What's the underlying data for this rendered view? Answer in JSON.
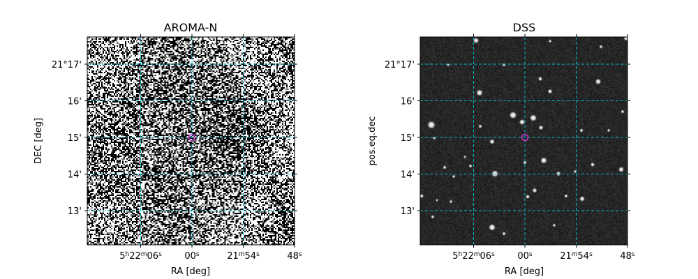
{
  "figure": {
    "panels": [
      {
        "title": "AROMA-N",
        "xlabel": "RA [deg]",
        "ylabel": "DEC [deg]",
        "image_style": "noisy-grayscale"
      },
      {
        "title": "DSS",
        "xlabel": "RA [deg]",
        "ylabel": "pos.eq.dec",
        "image_style": "dark-starfield"
      }
    ],
    "x_ticks": [
      {
        "ra_sec": 6,
        "parts": [
          {
            "t": "5"
          },
          {
            "t": "h",
            "sup": true
          },
          {
            "t": "22"
          },
          {
            "t": "m",
            "sup": true
          },
          {
            "t": "06"
          },
          {
            "t": "s",
            "sup": true
          }
        ]
      },
      {
        "ra_sec": 0,
        "parts": [
          {
            "t": "00"
          },
          {
            "t": "s",
            "sup": true
          }
        ]
      },
      {
        "ra_sec": -6,
        "parts": [
          {
            "t": "21"
          },
          {
            "t": "m",
            "sup": true
          },
          {
            "t": "54"
          },
          {
            "t": "s",
            "sup": true
          }
        ]
      },
      {
        "ra_sec": -12,
        "parts": [
          {
            "t": "48"
          },
          {
            "t": "s",
            "sup": true
          }
        ]
      }
    ],
    "y_ticks": [
      {
        "dec_arcmin": 17,
        "label": "21°17'"
      },
      {
        "dec_arcmin": 16,
        "label": "16'"
      },
      {
        "dec_arcmin": 15,
        "label": "15'"
      },
      {
        "dec_arcmin": 14,
        "label": "14'"
      },
      {
        "dec_arcmin": 13,
        "label": "13'"
      }
    ],
    "colors": {
      "grid": "#00b7c7",
      "marker": "#cc33cc",
      "frame": "#000000"
    }
  },
  "chart_data": {
    "type": "heatmap",
    "panels": [
      {
        "title": "AROMA-N",
        "xlabel": "RA [deg]",
        "ylabel": "DEC [deg]",
        "x_ticks": [
          "5h22m06s",
          "00s",
          "21m54s",
          "48s"
        ],
        "y_ticks": [
          "21°17'",
          "16'",
          "15'",
          "14'",
          "13'"
        ],
        "grid": true,
        "marker": {
          "ra": "5h22m00s",
          "dec": "21°15'"
        }
      },
      {
        "title": "DSS",
        "xlabel": "RA [deg]",
        "ylabel": "pos.eq.dec",
        "x_ticks": [
          "5h22m06s",
          "00s",
          "21m54s",
          "48s"
        ],
        "y_ticks": [
          "21°17'",
          "16'",
          "15'",
          "14'",
          "13'"
        ],
        "grid": true,
        "marker": {
          "ra": "5h22m00s",
          "dec": "21°15'"
        }
      }
    ]
  }
}
